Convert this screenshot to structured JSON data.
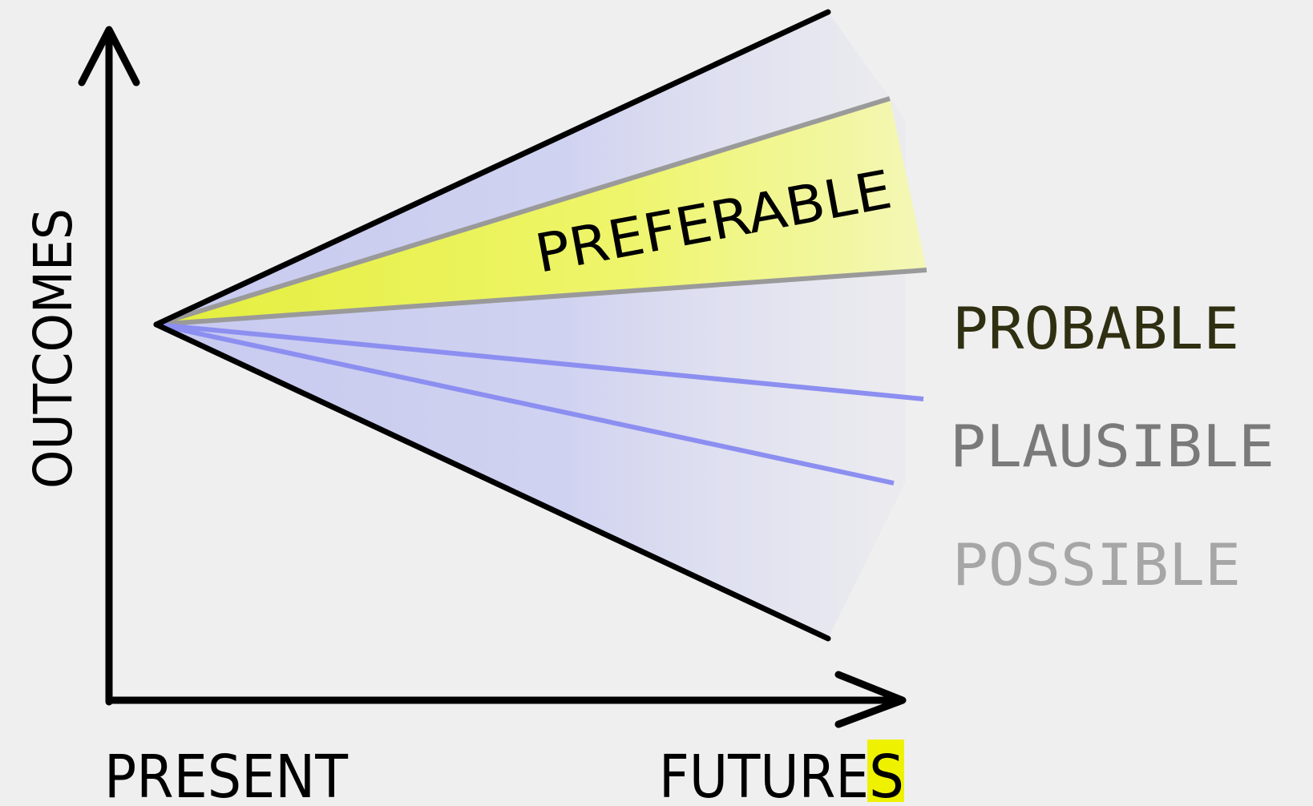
{
  "axes": {
    "y_label": "OUTCOMES",
    "x_label_left": "PRESENT",
    "x_label_right_main": "FUTURE",
    "x_label_right_highlight": "S"
  },
  "cones": {
    "preferable": "PREFERABLE",
    "probable": "PROBABLE",
    "plausible": "PLAUSIBLE",
    "possible": "POSSIBLE"
  },
  "colors": {
    "background": "#efefef",
    "axis": "#000000",
    "possible_fill": "#cdd0f0",
    "preferable_fill": "#eef46a",
    "preferable_edge": "#9a9a9a",
    "probable_lines": "#8c8ff0",
    "probable_text": "#2f2f12",
    "plausible_text": "#7a7a7a",
    "possible_text": "#a6a6a6",
    "highlight": "#eef200"
  }
}
